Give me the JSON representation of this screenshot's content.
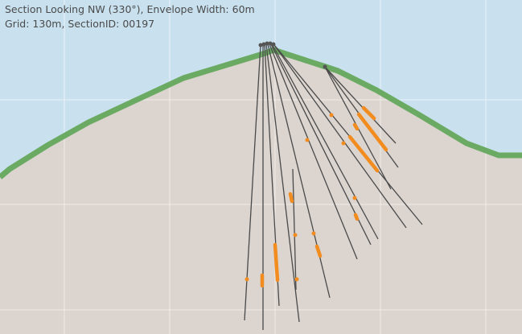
{
  "header": {
    "line1": "Section Looking NW (330°), Envelope Width: 60m",
    "line2": "Grid: 130m, SectionID: 00197"
  },
  "colors": {
    "sky": "#c9e1ef",
    "ground": "#dbd4cf",
    "topography": "#6aaa62",
    "grid": "#ffffff",
    "drillhole": "#4a4a4a",
    "collar": "#555555",
    "intercept": "#f28c1e"
  }
}
